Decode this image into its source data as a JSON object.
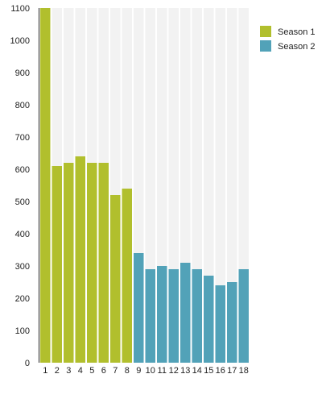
{
  "chart_data": {
    "type": "bar",
    "categories": [
      "1",
      "2",
      "3",
      "4",
      "5",
      "6",
      "7",
      "8",
      "9",
      "10",
      "11",
      "12",
      "13",
      "14",
      "15",
      "16",
      "17",
      "18"
    ],
    "series": [
      {
        "name": "Season 1",
        "color": "#b1bf2d",
        "values": [
          1100,
          610,
          620,
          640,
          620,
          620,
          520,
          540,
          null,
          null,
          null,
          null,
          null,
          null,
          null,
          null,
          null,
          null
        ]
      },
      {
        "name": "Season 2",
        "color": "#52a2b8",
        "values": [
          null,
          null,
          null,
          null,
          null,
          null,
          null,
          null,
          340,
          290,
          300,
          290,
          310,
          290,
          270,
          240,
          250,
          290
        ]
      }
    ],
    "ylim": [
      0,
      1100
    ],
    "yticks": [
      0,
      100,
      200,
      300,
      400,
      500,
      600,
      700,
      800,
      900,
      1000,
      1100
    ],
    "grid": false,
    "column_background": "#f2f2f2",
    "legend_position": "top-right"
  }
}
